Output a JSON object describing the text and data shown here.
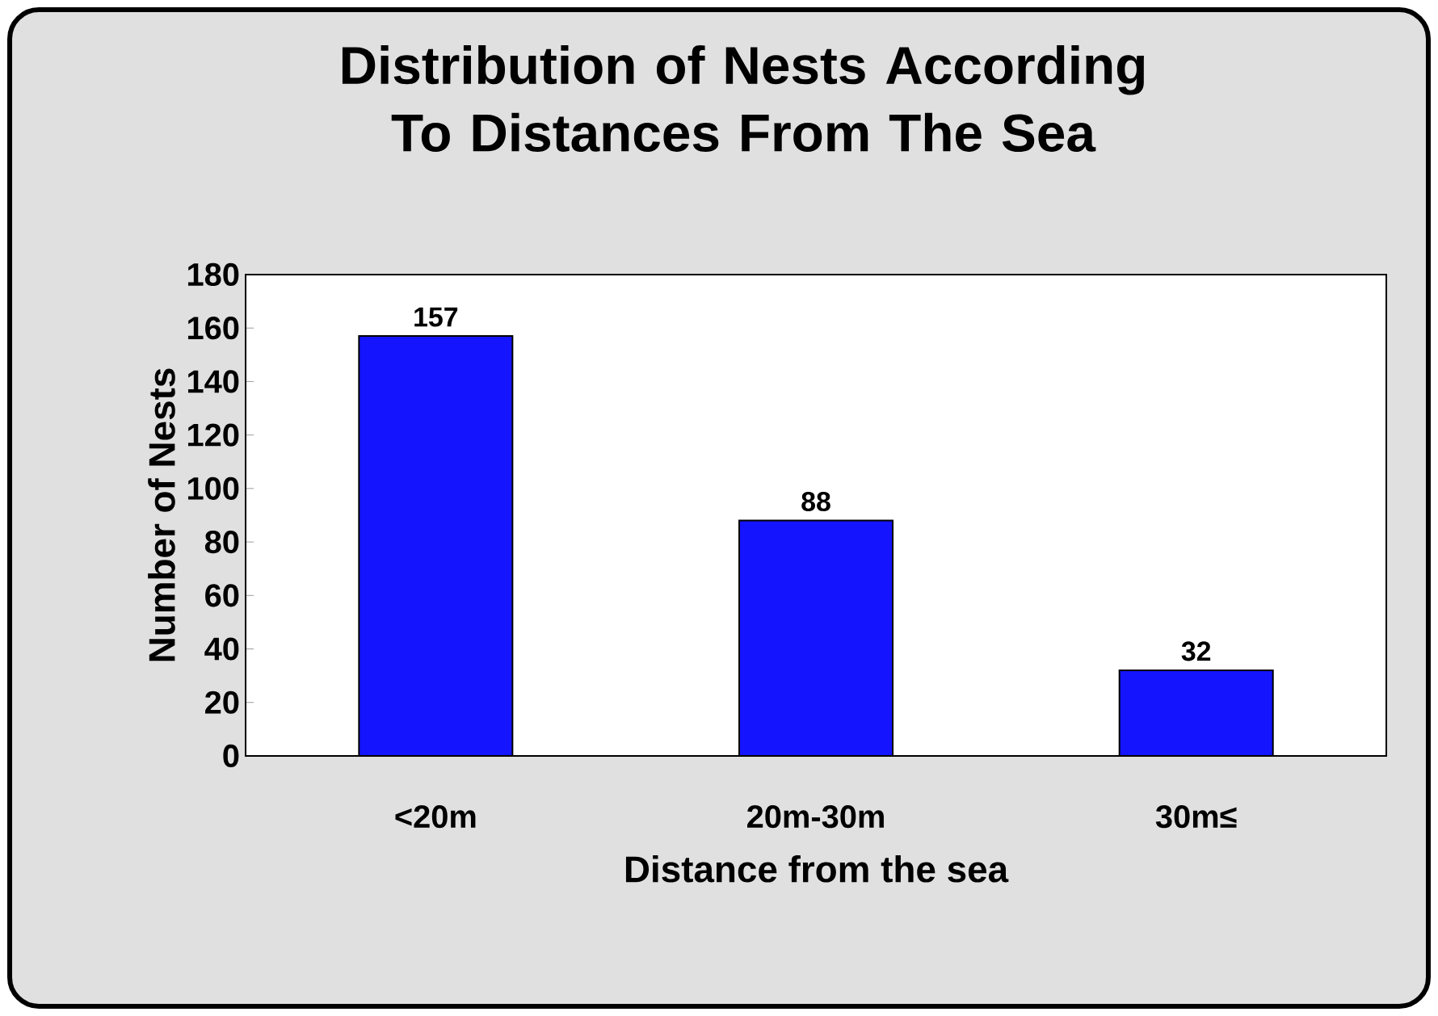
{
  "chart_data": {
    "type": "bar",
    "title": "Distribution of Nests According To Distances From The Sea",
    "xlabel": "Distance from the sea",
    "ylabel": "Number of Nests",
    "categories": [
      "<20m",
      "20m-30m",
      "30m≤"
    ],
    "values": [
      157,
      88,
      32
    ],
    "color": "#1414ff",
    "ylim": [
      0,
      180
    ],
    "yticks": [
      0,
      20,
      40,
      60,
      80,
      100,
      120,
      140,
      160,
      180
    ],
    "data_labels": true
  }
}
